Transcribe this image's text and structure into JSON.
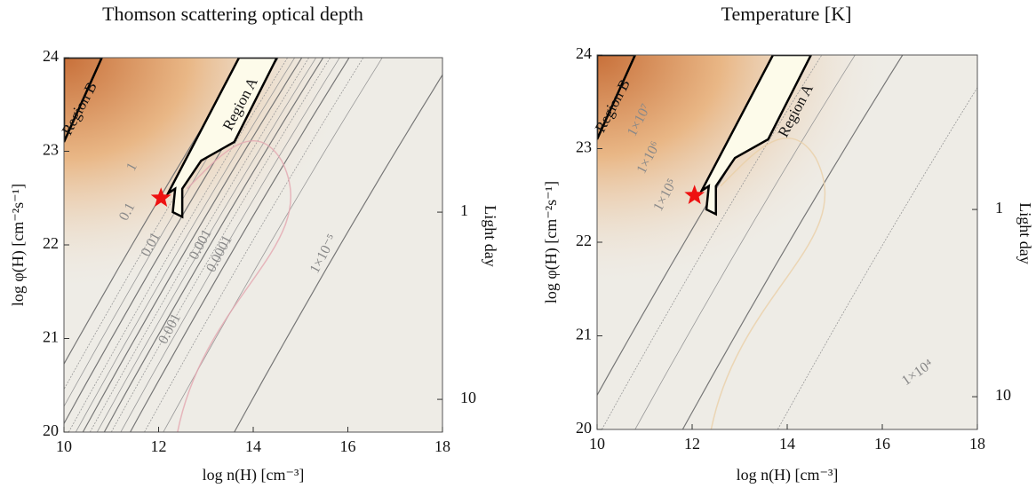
{
  "chart_data": [
    {
      "type": "contour",
      "title": "Thomson scattering optical depth",
      "xlabel": "log n(H) [cm⁻³]",
      "ylabel": "log φ(H)  [cm⁻²s⁻¹]",
      "y2label": "Light day",
      "xlim": [
        10,
        18
      ],
      "ylim": [
        20,
        24
      ],
      "xticks": [
        10,
        12,
        14,
        16,
        18
      ],
      "yticks": [
        20,
        21,
        22,
        23,
        24
      ],
      "y2lim": [
        14.96,
        0.1496
      ],
      "y2scale": "log",
      "y2ticks": [
        1,
        10
      ],
      "annotations": [
        "Region B",
        "Region A",
        "1",
        "0.1",
        "0.01",
        "0.001",
        "0.0001",
        "0.001",
        "1×10⁻⁵"
      ],
      "points": [
        {
          "x": 12.05,
          "y": 22.5,
          "color": "#ee1111"
        }
      ]
    },
    {
      "type": "contour",
      "title": "Temperature [K]",
      "xlabel": "log n(H) [cm⁻³]",
      "ylabel": "log φ(H)  [cm⁻²s⁻¹]",
      "y2label": "Light day",
      "xlim": [
        10,
        18
      ],
      "ylim": [
        20,
        24
      ],
      "xticks": [
        10,
        12,
        14,
        16,
        18
      ],
      "yticks": [
        20,
        21,
        22,
        23,
        24
      ],
      "y2lim": [
        14.96,
        0.1496
      ],
      "y2scale": "log",
      "y2ticks": [
        1,
        10
      ],
      "annotations": [
        "Region B",
        "Region A",
        "1×10⁷",
        "1×10⁶",
        "1×10⁵",
        "1×10⁴"
      ],
      "points": [
        {
          "x": 12.05,
          "y": 22.5,
          "color": "#ee1111"
        }
      ]
    }
  ]
}
